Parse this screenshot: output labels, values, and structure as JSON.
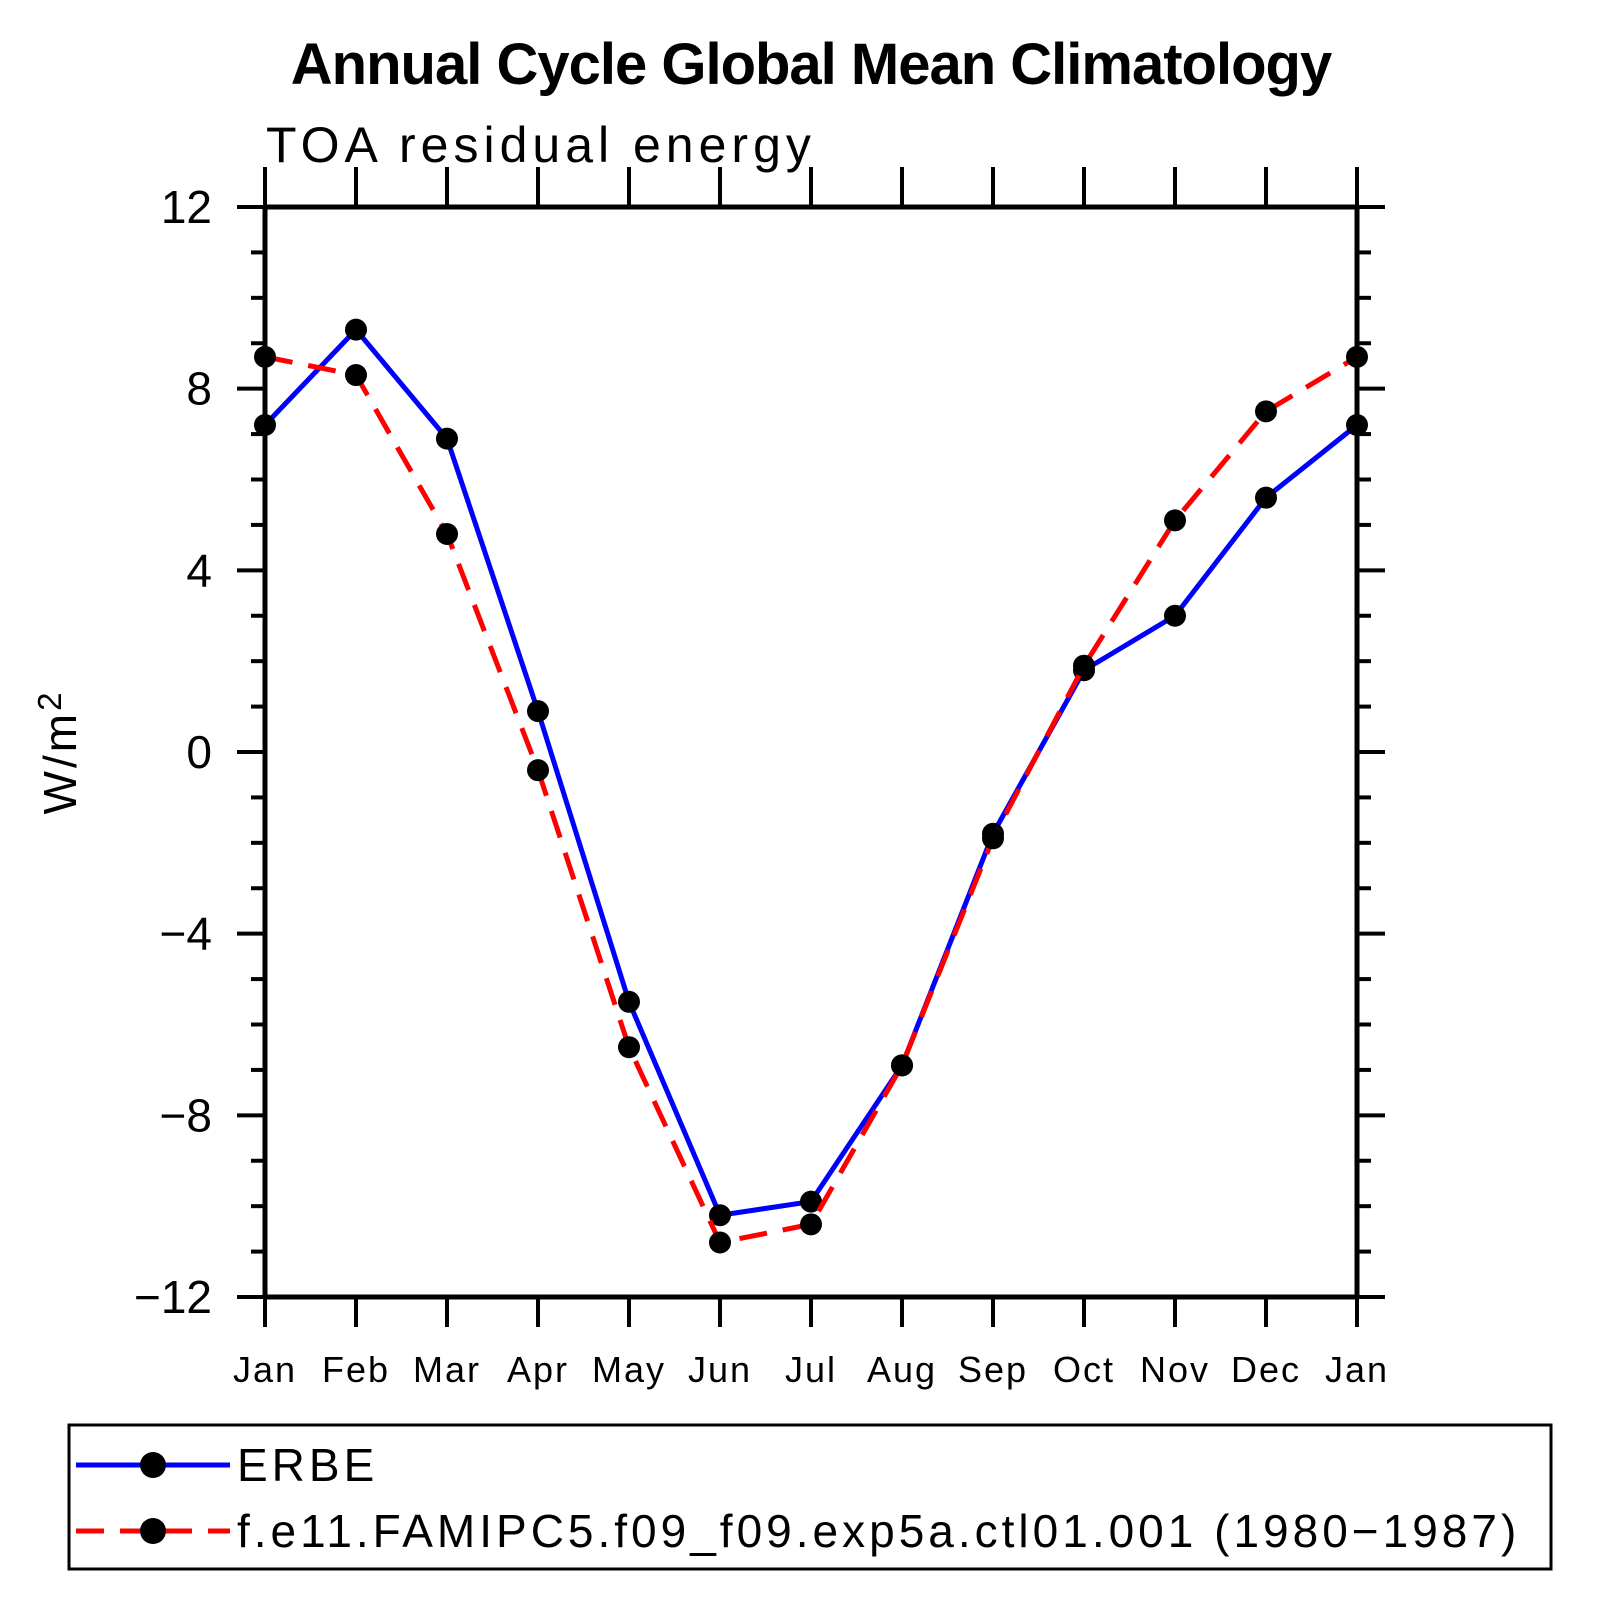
{
  "chart_data": {
    "type": "line",
    "title": "Annual Cycle Global Mean Climatology",
    "subtitle": "TOA residual energy",
    "ylabel": "W/m",
    "ylabel_superscript": "2",
    "categories": [
      "Jan",
      "Feb",
      "Mar",
      "Apr",
      "May",
      "Jun",
      "Jul",
      "Aug",
      "Sep",
      "Oct",
      "Nov",
      "Dec",
      "Jan"
    ],
    "ylim": [
      -12,
      12
    ],
    "y_major_step": 4,
    "y_minor_step": 1,
    "y_tick_values": [
      12,
      8,
      4,
      0,
      -4,
      -8,
      -12
    ],
    "y_tick_labels": [
      "12",
      "8",
      "4",
      "0",
      "−4",
      "−8",
      "−12"
    ],
    "grid": false,
    "legend_position": "bottom-left-box",
    "series": [
      {
        "name": "ERBE",
        "color": "#0000ff",
        "line_style": "solid",
        "marker": "filled-circle",
        "marker_color": "#000000",
        "values": [
          7.2,
          9.3,
          6.9,
          0.9,
          -5.5,
          -10.2,
          -9.9,
          -6.9,
          -1.8,
          1.8,
          3.0,
          5.6,
          7.2
        ]
      },
      {
        "name": "f.e11.FAMIPC5.f09_f09.exp5a.ctl01.001 (1980−1987)",
        "color": "#ff0000",
        "line_style": "dashed",
        "marker": "filled-circle",
        "marker_color": "#000000",
        "values": [
          8.7,
          8.3,
          4.8,
          -0.4,
          -6.5,
          -10.8,
          -10.4,
          -6.9,
          -1.9,
          1.9,
          5.1,
          7.5,
          8.7
        ]
      }
    ],
    "axis_color": "#000000",
    "background_color": "#ffffff"
  }
}
